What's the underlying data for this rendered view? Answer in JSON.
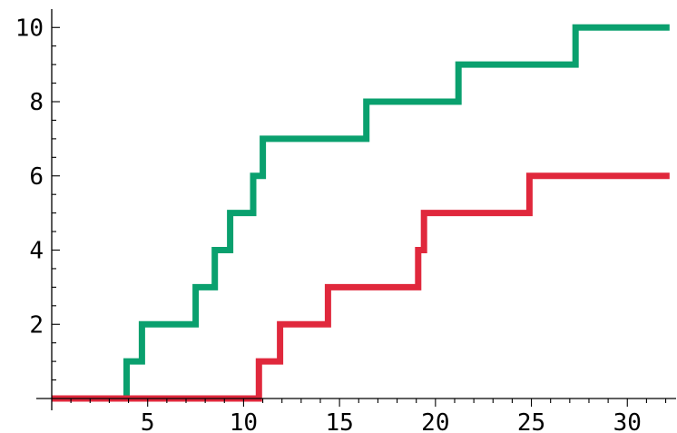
{
  "chart_data": {
    "type": "line",
    "step": "post",
    "title": "",
    "xlabel": "",
    "ylabel": "",
    "xlim": [
      0,
      32.4
    ],
    "ylim": [
      0,
      10.3
    ],
    "grid": false,
    "legend": "none",
    "x_ticks": [
      5,
      10,
      15,
      20,
      25,
      30
    ],
    "y_ticks": [
      2,
      4,
      6,
      8,
      10
    ],
    "x_tick_labels": [
      "5",
      "10",
      "15",
      "20",
      "25",
      "30"
    ],
    "y_tick_labels": [
      "2",
      "4",
      "6",
      "8",
      "10"
    ],
    "x_minor_step": 1,
    "y_minor_step": 0.5,
    "series": [
      {
        "color": "#0aa06e",
        "points": [
          [
            0,
            0
          ],
          [
            3.9,
            1
          ],
          [
            4.7,
            2
          ],
          [
            7.5,
            3
          ],
          [
            8.5,
            4
          ],
          [
            9.3,
            5
          ],
          [
            10.5,
            6
          ],
          [
            11.0,
            7
          ],
          [
            16.4,
            8
          ],
          [
            21.2,
            9
          ],
          [
            27.3,
            10
          ],
          [
            32.2,
            10
          ]
        ]
      },
      {
        "color": "#e0283c",
        "points": [
          [
            0,
            0
          ],
          [
            10.8,
            1
          ],
          [
            11.9,
            2
          ],
          [
            14.4,
            3
          ],
          [
            19.1,
            4
          ],
          [
            19.4,
            5
          ],
          [
            24.9,
            6
          ],
          [
            32.2,
            6
          ]
        ]
      }
    ]
  }
}
